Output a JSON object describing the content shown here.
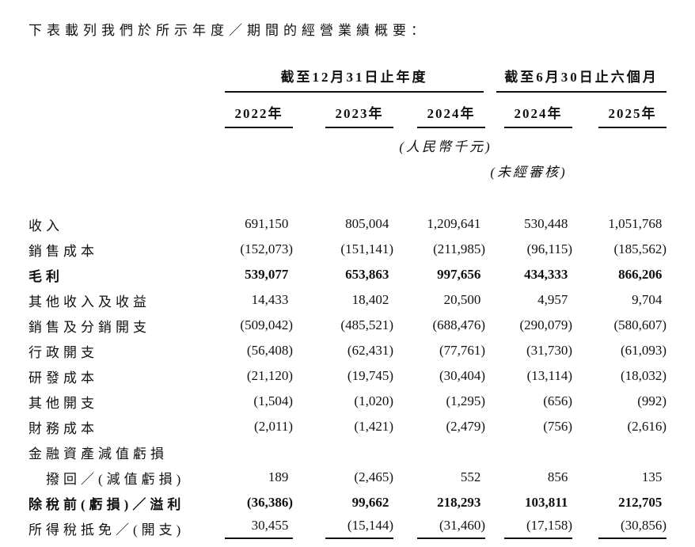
{
  "page": {
    "intro": "下表載列我們於所示年度／期間的經營業績概要："
  },
  "table": {
    "column_groups": [
      {
        "label": "截至12月31日止年度",
        "span": 3
      },
      {
        "label": "截至6月30日止六個月",
        "span": 2
      }
    ],
    "year_headers": [
      "2022年",
      "2023年",
      "2024年",
      "2024年",
      "2025年"
    ],
    "unit_note": "(人民幣千元)",
    "audit_note": "(未經審核)",
    "rows": [
      {
        "label": "收入",
        "values": [
          "691,150",
          "805,004",
          "1,209,641",
          "530,448",
          "1,051,768"
        ]
      },
      {
        "label": "銷售成本",
        "values": [
          "(152,073)",
          "(151,141)",
          "(211,985)",
          "(96,115)",
          "(185,562)"
        ]
      },
      {
        "label": "毛利",
        "bold": true,
        "values": [
          "539,077",
          "653,863",
          "997,656",
          "434,333",
          "866,206"
        ]
      },
      {
        "label": "其他收入及收益",
        "values": [
          "14,433",
          "18,402",
          "20,500",
          "4,957",
          "9,704"
        ]
      },
      {
        "label": "銷售及分銷開支",
        "values": [
          "(509,042)",
          "(485,521)",
          "(688,476)",
          "(290,079)",
          "(580,607)"
        ]
      },
      {
        "label": "行政開支",
        "values": [
          "(56,408)",
          "(62,431)",
          "(77,761)",
          "(31,730)",
          "(61,093)"
        ]
      },
      {
        "label": "研發成本",
        "values": [
          "(21,120)",
          "(19,745)",
          "(30,404)",
          "(13,114)",
          "(18,032)"
        ]
      },
      {
        "label": "其他開支",
        "values": [
          "(1,504)",
          "(1,020)",
          "(1,295)",
          "(656)",
          "(992)"
        ]
      },
      {
        "label": "財務成本",
        "values": [
          "(2,011)",
          "(1,421)",
          "(2,479)",
          "(756)",
          "(2,616)"
        ]
      },
      {
        "label": "金融資產減值虧損",
        "values": [
          "",
          "",
          "",
          "",
          ""
        ]
      },
      {
        "label": "撥回／(減值虧損)",
        "indent": true,
        "values": [
          "189",
          "(2,465)",
          "552",
          "856",
          "135"
        ]
      },
      {
        "label": "除稅前(虧損)／溢利",
        "bold": true,
        "values": [
          "(36,386)",
          "99,662",
          "218,293",
          "103,811",
          "212,705"
        ]
      },
      {
        "label": "所得稅抵免／(開支)",
        "rule_below": true,
        "values": [
          "30,455",
          "(15,144)",
          "(31,460)",
          "(17,158)",
          "(30,856)"
        ]
      }
    ]
  }
}
